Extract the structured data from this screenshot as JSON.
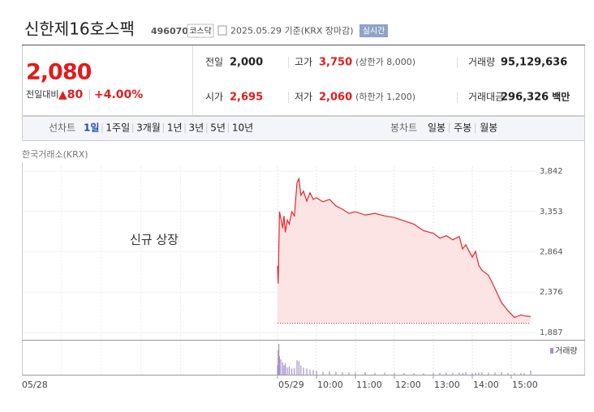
{
  "header": {
    "title": "신한제16호스팩",
    "code": "496070",
    "market": "코스닥",
    "date": "2025.05.29 기준(KRX 장마감)",
    "realtime": "실시간"
  },
  "quote": {
    "price": "2,080",
    "change_label": "전일대비",
    "change": "▲80",
    "change_pct": "+4.00%",
    "color": "#e01c1c"
  },
  "stats": {
    "rows": [
      [
        {
          "label": "전일",
          "value": "2,000",
          "color": "#222222"
        },
        {
          "label": "고가",
          "value": "3,750",
          "note": "(상한가 8,000)",
          "color": "#e01c1c"
        },
        {
          "label": "거래량",
          "value": "95,129,636",
          "color": "#222222"
        }
      ],
      [
        {
          "label": "시가",
          "value": "2,695",
          "color": "#e01c1c"
        },
        {
          "label": "저가",
          "value": "2,060",
          "note": "(하한가 1,200)",
          "color": "#e01c1c"
        },
        {
          "label": "거래대금",
          "value": "296,326",
          "unit": "백만",
          "color": "#222222"
        }
      ]
    ]
  },
  "tabs": {
    "line_label": "선차트",
    "line_periods": [
      "1일",
      "1주일",
      "3개월",
      "1년",
      "3년",
      "5년",
      "10년"
    ],
    "active_index": 0,
    "candle_label": "봉차트",
    "candle_periods": [
      "일봉",
      "주봉",
      "월봉"
    ]
  },
  "chart_data": {
    "type": "line",
    "source": "한국거래소(KRX)",
    "annotation": "신규 상장",
    "prev_day_label": "05/28",
    "color": "#e8262b",
    "fill": "#fde4e4",
    "baseline": 2000,
    "x": [
      "09:00",
      "09:01",
      "09:02",
      "09:03",
      "09:05",
      "09:08",
      "09:10",
      "09:12",
      "09:15",
      "09:18",
      "09:22",
      "09:26",
      "09:30",
      "09:33",
      "09:36",
      "09:40",
      "09:45",
      "09:50",
      "09:55",
      "10:00",
      "10:10",
      "10:20",
      "10:30",
      "10:40",
      "10:50",
      "11:00",
      "11:15",
      "11:30",
      "11:45",
      "12:00",
      "12:15",
      "12:30",
      "12:45",
      "13:00",
      "13:10",
      "13:20",
      "13:30",
      "13:40",
      "13:45",
      "13:50",
      "14:00",
      "14:05",
      "14:10",
      "14:15",
      "14:25",
      "14:35",
      "14:45",
      "14:55",
      "15:05",
      "15:15",
      "15:20",
      "15:30"
    ],
    "values": [
      2695,
      2480,
      2900,
      3350,
      3280,
      3150,
      3300,
      3100,
      3250,
      3200,
      3350,
      3300,
      3700,
      3750,
      3550,
      3600,
      3480,
      3580,
      3500,
      3520,
      3470,
      3500,
      3420,
      3380,
      3330,
      3350,
      3310,
      3330,
      3300,
      3280,
      3240,
      3200,
      3120,
      3090,
      3030,
      3060,
      3010,
      3050,
      2900,
      2950,
      2800,
      2870,
      2700,
      2640,
      2580,
      2420,
      2250,
      2150,
      2070,
      2100,
      2090,
      2080
    ],
    "volume": {
      "name": "거래량",
      "color": "#a58fc9",
      "values": [
        900,
        2400,
        3000,
        1800,
        1500,
        1200,
        900,
        1100,
        700,
        800,
        600,
        650,
        1400,
        1300,
        900,
        700,
        600,
        500,
        450,
        400,
        300,
        350,
        300,
        250,
        220,
        200,
        260,
        180,
        200,
        160,
        170,
        150,
        140,
        180,
        160,
        200,
        190,
        220,
        180,
        250,
        170,
        200,
        210,
        220,
        200,
        230,
        260,
        180,
        170,
        150,
        140,
        400
      ]
    },
    "xlim": [
      "09:00",
      "15:30"
    ],
    "xticks": [
      {
        "value": "09:00",
        "label": "05/29"
      },
      "10:00",
      "11:00",
      "12:00",
      "13:00",
      "14:00",
      "15:00"
    ],
    "ylim": [
      1887,
      3842
    ],
    "yticks": [
      {
        "value": 1887,
        "label": "1,887"
      },
      {
        "value": 2376,
        "label": "2,376"
      },
      {
        "value": 2864,
        "label": "2,864"
      },
      {
        "value": 3353,
        "label": "3,353"
      },
      {
        "value": 3842,
        "label": "3,842"
      }
    ],
    "grid": true
  }
}
